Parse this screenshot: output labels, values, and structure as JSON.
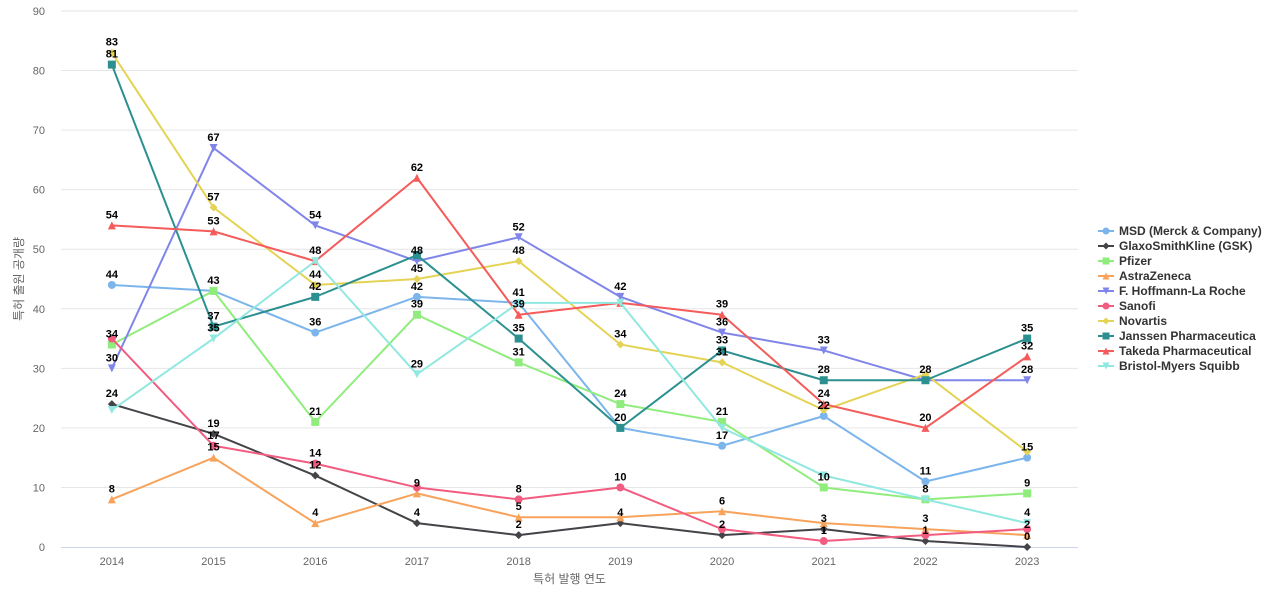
{
  "chart_data": {
    "type": "line",
    "title": "",
    "xlabel": "특허 발행 연도",
    "ylabel": "특허 출원 공개량",
    "x": [
      "2014",
      "2015",
      "2016",
      "2017",
      "2018",
      "2019",
      "2020",
      "2021",
      "2022",
      "2023"
    ],
    "ylim": [
      0,
      90
    ],
    "yticks": [
      0,
      10,
      20,
      30,
      40,
      50,
      60,
      70,
      80,
      90
    ],
    "grid": true,
    "legend_position": "right",
    "series": [
      {
        "name": "MSD (Merck & Company)",
        "color": "#7cb5ec",
        "marker": "circle",
        "values": [
          44,
          43,
          36,
          42,
          41,
          20,
          17,
          22,
          11,
          15
        ]
      },
      {
        "name": "GlaxoSmithKline (GSK)",
        "color": "#434348",
        "marker": "diamond",
        "values": [
          24,
          19,
          12,
          4,
          2,
          4,
          2,
          3,
          1,
          0
        ]
      },
      {
        "name": "Pfizer",
        "color": "#90ed7d",
        "marker": "square",
        "values": [
          34,
          43,
          21,
          39,
          31,
          24,
          21,
          10,
          8,
          9
        ]
      },
      {
        "name": "AstraZeneca",
        "color": "#f7a35c",
        "marker": "triangle",
        "values": [
          8,
          15,
          4,
          9,
          5,
          5,
          6,
          4,
          3,
          2
        ]
      },
      {
        "name": "F. Hoffmann-La Roche",
        "color": "#8085e9",
        "marker": "triangle-down",
        "values": [
          30,
          67,
          54,
          48,
          52,
          42,
          36,
          33,
          28,
          28
        ]
      },
      {
        "name": "Sanofi",
        "color": "#f15c80",
        "marker": "circle",
        "values": [
          35,
          17,
          14,
          10,
          8,
          10,
          3,
          1,
          2,
          3
        ]
      },
      {
        "name": "Novartis",
        "color": "#e4d354",
        "marker": "diamond",
        "values": [
          83,
          57,
          44,
          45,
          48,
          34,
          31,
          23,
          29,
          16
        ]
      },
      {
        "name": "Janssen Pharmaceutica",
        "color": "#2b908f",
        "marker": "square",
        "values": [
          81,
          37,
          42,
          49,
          35,
          20,
          33,
          28,
          28,
          35
        ]
      },
      {
        "name": "Takeda Pharmaceutical",
        "color": "#f45b5b",
        "marker": "triangle",
        "values": [
          54,
          53,
          48,
          62,
          39,
          41,
          39,
          24,
          20,
          32
        ]
      },
      {
        "name": "Bristol-Myers Squibb",
        "color": "#91e8e1",
        "marker": "triangle-down",
        "values": [
          23,
          35,
          48,
          29,
          41,
          41,
          20,
          12,
          8,
          4
        ]
      }
    ],
    "data_labels": [
      {
        "x": "2014",
        "text": "83"
      },
      {
        "x": "2014",
        "text": "81"
      },
      {
        "x": "2014",
        "text": "54"
      },
      {
        "x": "2014",
        "text": "44"
      },
      {
        "x": "2014",
        "text": "34"
      },
      {
        "x": "2014",
        "text": "30"
      },
      {
        "x": "2014",
        "text": "24"
      },
      {
        "x": "2014",
        "text": "8"
      },
      {
        "x": "2015",
        "text": "67"
      },
      {
        "x": "2015",
        "text": "57"
      },
      {
        "x": "2015",
        "text": "53"
      },
      {
        "x": "2015",
        "text": "43"
      },
      {
        "x": "2015",
        "text": "37"
      },
      {
        "x": "2015",
        "text": "35"
      },
      {
        "x": "2015",
        "text": "19"
      },
      {
        "x": "2015",
        "text": "17"
      },
      {
        "x": "2015",
        "text": "15"
      },
      {
        "x": "2016",
        "text": "54"
      },
      {
        "x": "2016",
        "text": "48"
      },
      {
        "x": "2016",
        "text": "44"
      },
      {
        "x": "2016",
        "text": "42"
      },
      {
        "x": "2016",
        "text": "36"
      },
      {
        "x": "2016",
        "text": "21"
      },
      {
        "x": "2016",
        "text": "14"
      },
      {
        "x": "2016",
        "text": "12"
      },
      {
        "x": "2016",
        "text": "4"
      },
      {
        "x": "2017",
        "text": "62"
      },
      {
        "x": "2017",
        "text": "48"
      },
      {
        "x": "2017",
        "text": "45"
      },
      {
        "x": "2017",
        "text": "42"
      },
      {
        "x": "2017",
        "text": "39"
      },
      {
        "x": "2017",
        "text": "29"
      },
      {
        "x": "2017",
        "text": "9"
      },
      {
        "x": "2017",
        "text": "4"
      },
      {
        "x": "2018",
        "text": "52"
      },
      {
        "x": "2018",
        "text": "48"
      },
      {
        "x": "2018",
        "text": "41"
      },
      {
        "x": "2018",
        "text": "39"
      },
      {
        "x": "2018",
        "text": "35"
      },
      {
        "x": "2018",
        "text": "31"
      },
      {
        "x": "2018",
        "text": "8"
      },
      {
        "x": "2018",
        "text": "5"
      },
      {
        "x": "2018",
        "text": "2"
      },
      {
        "x": "2019",
        "text": "42"
      },
      {
        "x": "2019",
        "text": "34"
      },
      {
        "x": "2019",
        "text": "24"
      },
      {
        "x": "2019",
        "text": "20"
      },
      {
        "x": "2019",
        "text": "10"
      },
      {
        "x": "2019",
        "text": "4"
      },
      {
        "x": "2020",
        "text": "39"
      },
      {
        "x": "2020",
        "text": "36"
      },
      {
        "x": "2020",
        "text": "33"
      },
      {
        "x": "2020",
        "text": "31"
      },
      {
        "x": "2020",
        "text": "21"
      },
      {
        "x": "2020",
        "text": "17"
      },
      {
        "x": "2020",
        "text": "6"
      },
      {
        "x": "2020",
        "text": "2"
      },
      {
        "x": "2021",
        "text": "33"
      },
      {
        "x": "2021",
        "text": "28"
      },
      {
        "x": "2021",
        "text": "24"
      },
      {
        "x": "2021",
        "text": "22"
      },
      {
        "x": "2021",
        "text": "10"
      },
      {
        "x": "2021",
        "text": "3"
      },
      {
        "x": "2021",
        "text": "1"
      },
      {
        "x": "2022",
        "text": "28"
      },
      {
        "x": "2022",
        "text": "20"
      },
      {
        "x": "2022",
        "text": "11"
      },
      {
        "x": "2022",
        "text": "8"
      },
      {
        "x": "2022",
        "text": "3"
      },
      {
        "x": "2022",
        "text": "1"
      },
      {
        "x": "2023",
        "text": "35"
      },
      {
        "x": "2023",
        "text": "32"
      },
      {
        "x": "2023",
        "text": "28"
      },
      {
        "x": "2023",
        "text": "15"
      },
      {
        "x": "2023",
        "text": "9"
      },
      {
        "x": "2023",
        "text": "4"
      },
      {
        "x": "2023",
        "text": "2"
      },
      {
        "x": "2023",
        "text": "0"
      }
    ]
  }
}
